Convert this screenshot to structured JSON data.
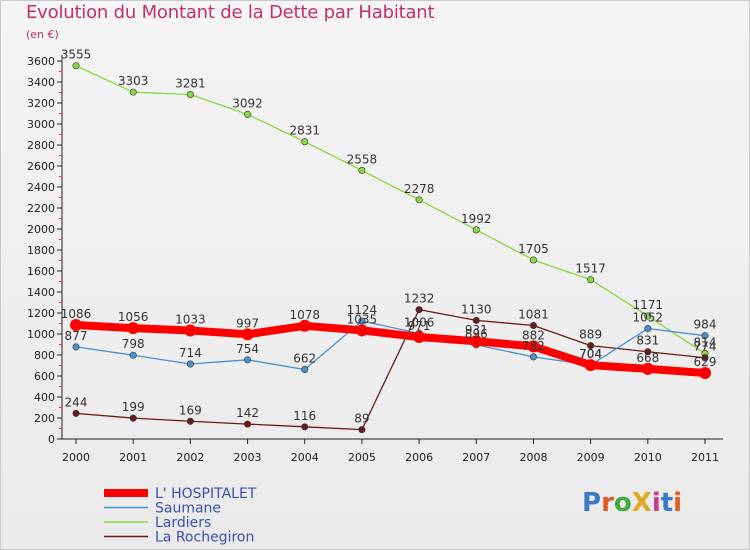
{
  "title": "Evolution du Montant de la Dette par Habitant",
  "subtitle": "(en €)",
  "logo": "ProXiti",
  "chart_data": {
    "type": "line",
    "title": "Evolution du Montant de la Dette par Habitant",
    "ylabel": "(en €)",
    "x": [
      "2000",
      "2001",
      "2002",
      "2003",
      "2004",
      "2005",
      "2006",
      "2007",
      "2008",
      "2009",
      "2010",
      "2011"
    ],
    "ylim": [
      0,
      3600
    ],
    "yticks": [
      0,
      200,
      400,
      600,
      800,
      1000,
      1200,
      1400,
      1600,
      1800,
      2000,
      2200,
      2400,
      2600,
      2800,
      3000,
      3200,
      3400,
      3600
    ],
    "grid": false,
    "legend_position": "bottom-left",
    "series": [
      {
        "name": "L' HOSPITALET",
        "color": "#ff0000",
        "width": "thick",
        "values": [
          1086,
          1056,
          1033,
          997,
          1078,
          1035,
          971,
          931,
          882,
          704,
          668,
          629
        ],
        "labels": [
          1086,
          1056,
          1033,
          997,
          1078,
          1035,
          971,
          931,
          882,
          704,
          668,
          629
        ]
      },
      {
        "name": "Saumane",
        "color": "#4a8fd0",
        "values": [
          877,
          798,
          714,
          754,
          662,
          1124,
          1006,
          896,
          782,
          704,
          1052,
          984
        ],
        "labels": [
          877,
          798,
          714,
          754,
          662,
          1124,
          1006,
          896,
          782,
          704,
          1052,
          984
        ]
      },
      {
        "name": "Lardiers",
        "color": "#8bd642",
        "values": [
          3555,
          3303,
          3281,
          3092,
          2831,
          2558,
          2278,
          1992,
          1705,
          1517,
          1171,
          814
        ],
        "labels": [
          3555,
          3303,
          3281,
          3092,
          2831,
          2558,
          2278,
          1992,
          1705,
          1517,
          1171,
          814
        ]
      },
      {
        "name": "La Rochegiron",
        "color": "#6b1a1a",
        "values": [
          244,
          199,
          169,
          142,
          116,
          89,
          1232,
          1130,
          1081,
          889,
          831,
          774
        ],
        "labels": [
          244,
          199,
          169,
          142,
          116,
          89,
          1232,
          1130,
          1081,
          889,
          831,
          774
        ]
      }
    ]
  }
}
